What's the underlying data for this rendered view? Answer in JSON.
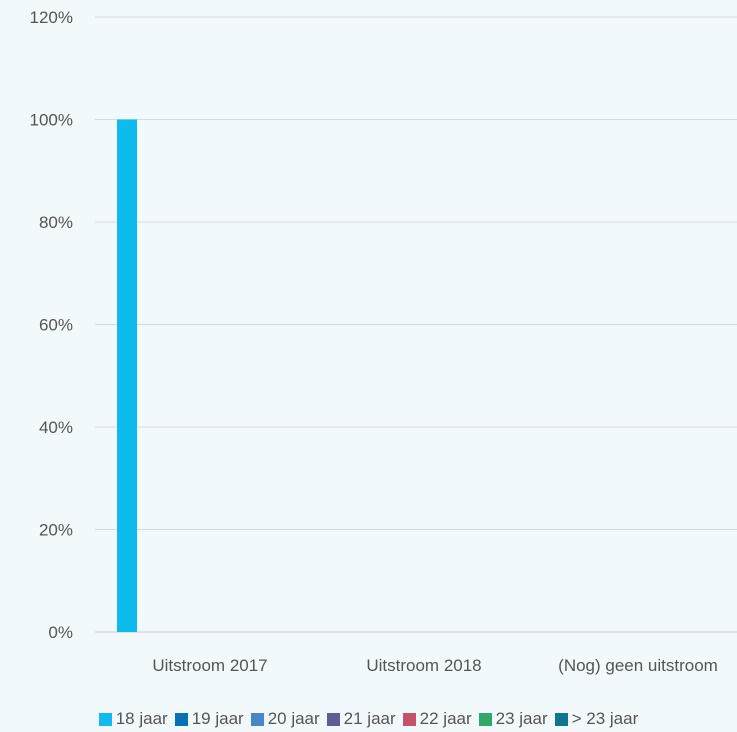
{
  "chart_data": {
    "type": "bar",
    "title": "",
    "xlabel": "",
    "ylabel": "",
    "categories": [
      "Uitstroom 2017",
      "Uitstroom 2018",
      "(Nog) geen uitstroom"
    ],
    "y_ticks": [
      "0%",
      "20%",
      "40%",
      "60%",
      "80%",
      "100%",
      "120%"
    ],
    "ylim": [
      0,
      120
    ],
    "grid": true,
    "legend_position": "bottom",
    "series": [
      {
        "name": "18 jaar",
        "color": "#0dbbec",
        "values": [
          100,
          0,
          0
        ]
      },
      {
        "name": "19 jaar",
        "color": "#0a6fb5",
        "values": [
          0,
          0,
          0
        ]
      },
      {
        "name": "20 jaar",
        "color": "#4a86c5",
        "values": [
          0,
          0,
          0
        ]
      },
      {
        "name": "21 jaar",
        "color": "#5e5d96",
        "values": [
          0,
          0,
          0
        ]
      },
      {
        "name": "22 jaar",
        "color": "#c4526b",
        "values": [
          0,
          0,
          0
        ]
      },
      {
        "name": "23 jaar",
        "color": "#2fa86a",
        "values": [
          0,
          0,
          0
        ]
      },
      {
        "name": "> 23 jaar",
        "color": "#0c7691",
        "values": [
          0,
          0,
          0
        ]
      }
    ]
  }
}
